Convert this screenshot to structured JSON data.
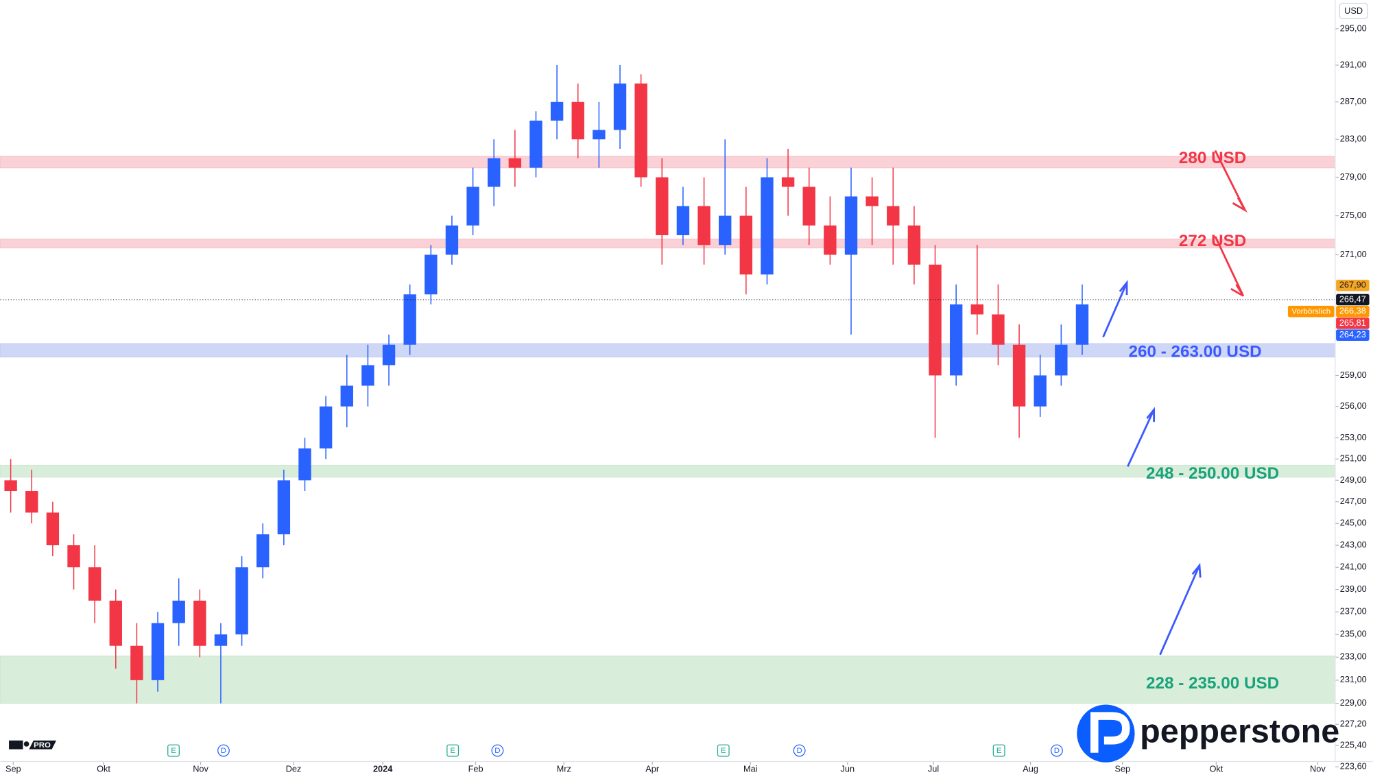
{
  "chart_data": {
    "type": "candlestick",
    "currency": "USD",
    "up_color": "#2962ff",
    "down_color": "#f23645",
    "x": [
      0,
      1,
      2,
      3,
      4,
      5,
      6,
      7,
      8,
      9,
      10,
      11,
      12,
      13,
      14,
      15,
      16,
      17,
      18,
      19,
      20,
      21,
      22,
      23,
      24,
      25,
      26,
      27,
      28,
      29,
      30,
      31,
      32,
      33,
      34,
      35,
      36,
      37,
      38,
      39,
      40,
      41,
      42,
      43,
      44,
      45,
      46,
      47,
      48,
      49,
      50,
      51
    ],
    "open": [
      249,
      248,
      246,
      243,
      241,
      238,
      234,
      231,
      236,
      238,
      234,
      235,
      241,
      244,
      249,
      252,
      256,
      258,
      260,
      262,
      267,
      271,
      274,
      278,
      281,
      280,
      285,
      287,
      283,
      284,
      289,
      279,
      273,
      276,
      272,
      275,
      269,
      279,
      278,
      274,
      271,
      277,
      276,
      274,
      270,
      259,
      266,
      265,
      262,
      256,
      259,
      262
    ],
    "high": [
      251,
      250,
      247,
      244,
      243,
      239,
      236,
      237,
      240,
      239,
      236,
      242,
      245,
      250,
      253,
      257,
      261,
      262,
      263,
      268,
      272,
      275,
      280,
      283,
      284,
      286,
      291,
      289,
      287,
      291,
      290,
      281,
      278,
      279,
      283,
      278,
      281,
      282,
      280,
      277,
      280,
      279,
      280,
      276,
      272,
      268,
      272,
      268,
      264,
      261,
      264,
      268
    ],
    "low": [
      246,
      245,
      242,
      239,
      236,
      232,
      229,
      230,
      234,
      233,
      229,
      234,
      240,
      243,
      248,
      251,
      254,
      256,
      258,
      261,
      266,
      270,
      273,
      276,
      278,
      279,
      283,
      281,
      280,
      282,
      278,
      270,
      272,
      270,
      271,
      267,
      268,
      275,
      272,
      270,
      263,
      272,
      270,
      268,
      253,
      258,
      263,
      260,
      253,
      255,
      258,
      261
    ],
    "close": [
      248,
      246,
      243,
      241,
      238,
      234,
      231,
      236,
      238,
      234,
      235,
      241,
      244,
      249,
      252,
      256,
      258,
      260,
      262,
      267,
      271,
      274,
      278,
      281,
      280,
      285,
      287,
      283,
      284,
      289,
      279,
      273,
      276,
      272,
      275,
      269,
      279,
      278,
      274,
      271,
      277,
      276,
      274,
      270,
      259,
      266,
      265,
      262,
      256,
      259,
      262,
      266
    ],
    "xlim": [
      0,
      63.54
    ],
    "xticks": [
      {
        "value": 0.62,
        "label": "Sep"
      },
      {
        "value": 4.92,
        "label": "Okt"
      },
      {
        "value": 9.54,
        "label": "Nov"
      },
      {
        "value": 13.96,
        "label": "Dez"
      },
      {
        "value": 18.21,
        "label": "2024"
      },
      {
        "value": 22.63,
        "label": "Feb"
      },
      {
        "value": 26.83,
        "label": "Mrz"
      },
      {
        "value": 31.04,
        "label": "Apr"
      },
      {
        "value": 35.71,
        "label": "Mai"
      },
      {
        "value": 40.33,
        "label": "Jun"
      },
      {
        "value": 44.42,
        "label": "Jul"
      },
      {
        "value": 49.04,
        "label": "Aug"
      },
      {
        "value": 53.42,
        "label": "Sep"
      },
      {
        "value": 57.88,
        "label": "Okt"
      },
      {
        "value": 62.71,
        "label": "Nov"
      }
    ],
    "ylim": [
      224.2,
      298.2
    ],
    "log_scale": true,
    "yticks": [
      {
        "value": 295,
        "label": "295,00"
      },
      {
        "value": 291,
        "label": "291,00"
      },
      {
        "value": 287,
        "label": "287,00"
      },
      {
        "value": 283,
        "label": "283,00"
      },
      {
        "value": 279,
        "label": "279,00"
      },
      {
        "value": 275,
        "label": "275,00"
      },
      {
        "value": 271,
        "label": "271,00"
      },
      {
        "value": 259,
        "label": "259,00"
      },
      {
        "value": 256,
        "label": "256,00"
      },
      {
        "value": 253,
        "label": "253,00"
      },
      {
        "value": 251,
        "label": "251,00"
      },
      {
        "value": 249,
        "label": "249,00"
      },
      {
        "value": 247,
        "label": "247,00"
      },
      {
        "value": 245,
        "label": "245,00"
      },
      {
        "value": 243,
        "label": "243,00"
      },
      {
        "value": 241,
        "label": "241,00"
      },
      {
        "value": 239,
        "label": "239,00"
      },
      {
        "value": 237,
        "label": "237,00"
      },
      {
        "value": 235,
        "label": "235,00"
      },
      {
        "value": 233,
        "label": "233,00"
      },
      {
        "value": 231,
        "label": "231,00"
      },
      {
        "value": 229,
        "label": "229,00"
      },
      {
        "value": 227.2,
        "label": "227,20"
      },
      {
        "value": 225.4,
        "label": "225,40"
      },
      {
        "value": 223.6,
        "label": "223,60"
      }
    ],
    "zones": [
      {
        "low": 280,
        "high": 281.2,
        "color": "#f7c5cc"
      },
      {
        "low": 271.7,
        "high": 272.6,
        "color": "#f7c5cc"
      },
      {
        "low": 260.8,
        "high": 262.1,
        "color": "#c3cdf5"
      },
      {
        "low": 249.3,
        "high": 250.4,
        "color": "#cfe8d2"
      },
      {
        "low": 229,
        "high": 233.1,
        "color": "#cfe8d2"
      }
    ],
    "annotations": [
      {
        "text": "280 USD",
        "y": 281.2,
        "color": "#f23645"
      },
      {
        "text": "272 USD",
        "y": 272.6,
        "color": "#f23645"
      },
      {
        "text": "260 - 263.00 USD",
        "y": 261.5,
        "color": "#3d5afe"
      },
      {
        "text": "248 - 250.00 USD",
        "y": 249.8,
        "color": "#1aa37a"
      },
      {
        "text": "228 - 235.00 USD",
        "y": 230.9,
        "color": "#1aa37a"
      }
    ],
    "last_price": 266.47,
    "price_badges": [
      {
        "value": 267.9,
        "label": "267,90",
        "color": "#f5a623",
        "text_color": "#131722"
      },
      {
        "value": 266.47,
        "label": "266,47",
        "color": "#131722",
        "text_color": "#ffffff"
      },
      {
        "value": 266.38,
        "label": "266,38",
        "color": "#ff9800",
        "text_color": "#ffffff"
      },
      {
        "value": 265.81,
        "label": "265,81",
        "color": "#f23645",
        "text_color": "#ffffff"
      },
      {
        "value": 264.23,
        "label": "264,23",
        "color": "#2962ff",
        "text_color": "#ffffff"
      }
    ],
    "premarket_label": "Vorbörslich",
    "events": [
      {
        "x": 8.25,
        "label": "E"
      },
      {
        "x": 10.63,
        "label": "D"
      },
      {
        "x": 21.54,
        "label": "E"
      },
      {
        "x": 23.67,
        "label": "D"
      },
      {
        "x": 34.42,
        "label": "E"
      },
      {
        "x": 38.04,
        "label": "D"
      },
      {
        "x": 47.54,
        "label": "E"
      },
      {
        "x": 50.29,
        "label": "D"
      }
    ],
    "logo": "pepperstone",
    "badge": "PRO"
  }
}
